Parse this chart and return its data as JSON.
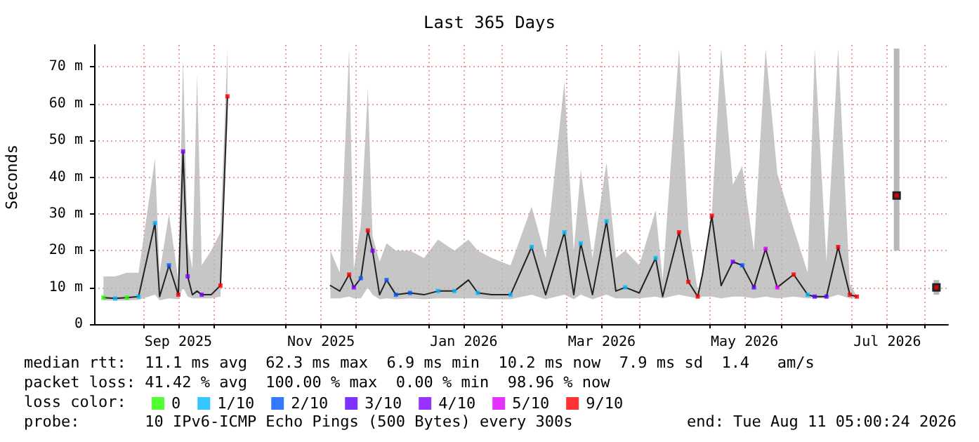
{
  "chart_data": {
    "type": "line",
    "title": "Last 365 Days",
    "ylabel": "Seconds",
    "legend_title": "loss color:",
    "annotations": [
      "median rtt:  11.1 ms avg  62.3 ms max  6.9 ms min  10.2 ms now  7.9 ms sd  1.4   am/s",
      "packet loss: 41.42 % avg  100.00 % max  0.00 % min  98.96 % now",
      "probe:       10 IPv6-ICMP Echo Pings (500 Bytes) every 300s",
      "end: Tue Aug 11 05:00:24 2026"
    ],
    "xlim": [
      "2025-08-11",
      "2026-08-11"
    ],
    "xticks": [
      {
        "value": "2025-09-01",
        "label": null
      },
      {
        "value": "2025-09-16",
        "label": "Sep 2025"
      },
      {
        "value": "2025-10-01",
        "label": null
      },
      {
        "value": "2025-11-01",
        "label": null
      },
      {
        "value": "2025-11-16",
        "label": "Nov 2025"
      },
      {
        "value": "2025-12-01",
        "label": null
      },
      {
        "value": "2026-01-01",
        "label": null
      },
      {
        "value": "2026-01-16",
        "label": "Jan 2026"
      },
      {
        "value": "2026-02-01",
        "label": null
      },
      {
        "value": "2026-03-01",
        "label": null
      },
      {
        "value": "2026-03-16",
        "label": "Mar 2026"
      },
      {
        "value": "2026-04-01",
        "label": null
      },
      {
        "value": "2026-05-01",
        "label": null
      },
      {
        "value": "2026-05-16",
        "label": "May 2026"
      },
      {
        "value": "2026-06-01",
        "label": null
      },
      {
        "value": "2026-07-01",
        "label": null
      },
      {
        "value": "2026-07-16",
        "label": "Jul 2026"
      },
      {
        "value": "2026-08-01",
        "label": null
      }
    ],
    "ylim": [
      0,
      76
    ],
    "yticks": [
      0,
      {
        "value": 10,
        "label": "10 m"
      },
      {
        "value": 20,
        "label": "20 m"
      },
      {
        "value": 30,
        "label": "30 m"
      },
      {
        "value": 40,
        "label": "40 m"
      },
      {
        "value": 50,
        "label": "50 m"
      },
      {
        "value": 60,
        "label": "60 m"
      },
      {
        "value": 70,
        "label": "70 m"
      }
    ],
    "grid": true,
    "legend": "bottom",
    "series": [
      {
        "color": "#222222",
        "marker": "none",
        "x": [
          "2025-08-15",
          "2025-08-20",
          "2025-08-25",
          "2025-08-30",
          "2025-09-06",
          "2025-09-08",
          "2025-09-12",
          "2025-09-16",
          "2025-09-18",
          "2025-09-20",
          "2025-09-22",
          "2025-09-24",
          "2025-09-26",
          "2025-09-30",
          "2025-10-04",
          "2025-10-07",
          "2025-10-10",
          "2025-11-20",
          "2025-11-24",
          "2025-11-28",
          "2025-11-30",
          "2025-12-03",
          "2025-12-06",
          "2025-12-08",
          "2025-12-11",
          "2025-12-14",
          "2025-12-18",
          "2025-12-24",
          "2025-12-30",
          "2026-01-05",
          "2026-01-12",
          "2026-01-18",
          "2026-01-22",
          "2026-01-28",
          "2026-02-05",
          "2026-02-14",
          "2026-02-20",
          "2026-02-28",
          "2026-03-04",
          "2026-03-07",
          "2026-03-12",
          "2026-03-18",
          "2026-03-22",
          "2026-03-26",
          "2026-04-01",
          "2026-04-08",
          "2026-04-11",
          "2026-04-18",
          "2026-04-22",
          "2026-04-26",
          "2026-04-28",
          "2026-05-02",
          "2026-05-06",
          "2026-05-11",
          "2026-05-15",
          "2026-05-20",
          "2026-05-25",
          "2026-05-30",
          "2026-06-06",
          "2026-06-12",
          "2026-06-15",
          "2026-06-20",
          "2026-06-25",
          "2026-06-30",
          "2026-07-03",
          "2026-07-10",
          "2026-07-20",
          "2026-07-28",
          "2026-08-06"
        ],
        "values": [
          7.2,
          7,
          7.2,
          7.5,
          27.5,
          7.5,
          16,
          8,
          47,
          13,
          8,
          9,
          8,
          8,
          10.5,
          62,
          null,
          10.5,
          9,
          13.5,
          10,
          12.5,
          25.5,
          20,
          8,
          12,
          8,
          8.5,
          8,
          9,
          9,
          12,
          8.5,
          8,
          8,
          21,
          8,
          25,
          8,
          22,
          8,
          28,
          9,
          10,
          8.5,
          18,
          7.5,
          25,
          11.5,
          7.5,
          13.5,
          29.5,
          10.5,
          17,
          16,
          10,
          20.5,
          10,
          13.5,
          8,
          7.5,
          7.5,
          21,
          8,
          7.5,
          null,
          35,
          null,
          10
        ],
        "lower": [
          6.5,
          6.4,
          6.5,
          6.6,
          8,
          6.5,
          7,
          6.8,
          10,
          7.5,
          7,
          7,
          7,
          7,
          7.5,
          55,
          null,
          7,
          7,
          7.5,
          7,
          7,
          10,
          8,
          6.8,
          7,
          6.8,
          7,
          6.8,
          7,
          7,
          7,
          7,
          6.8,
          6.8,
          8,
          6.8,
          8,
          6.8,
          8,
          6.8,
          8,
          7,
          7,
          7,
          7.5,
          7,
          8,
          7.5,
          7,
          7.5,
          7.5,
          7,
          7.5,
          7.5,
          7,
          7.5,
          7,
          7.5,
          7,
          7,
          7,
          8,
          7,
          7,
          null,
          20,
          null,
          8
        ],
        "upper": [
          13,
          13,
          14,
          14,
          45,
          14,
          30,
          12,
          72,
          22,
          15,
          68,
          16,
          20,
          25,
          75,
          null,
          20,
          14,
          75,
          15,
          27,
          64,
          24,
          17,
          22,
          20,
          20,
          18,
          23,
          20,
          23,
          20,
          18,
          16,
          32,
          18,
          66,
          20,
          42,
          18,
          44,
          18,
          20,
          16,
          31,
          12,
          75,
          26,
          9,
          14,
          30,
          75,
          38,
          43,
          20,
          75,
          41,
          26,
          14,
          75,
          17,
          75,
          11,
          7.6,
          null,
          75,
          null,
          12
        ]
      },
      {
        "type": "scatter",
        "name": "0",
        "color": "#26ff00",
        "marker": "square",
        "x": [
          "2025-08-15",
          "2025-08-25"
        ],
        "values": [
          7.2,
          7.2
        ]
      },
      {
        "type": "scatter",
        "name": "1/10",
        "color": "#00b8ff",
        "marker": "square",
        "x": [
          "2025-08-20",
          "2025-08-30",
          "2025-09-06",
          "2026-01-05",
          "2026-01-12",
          "2026-01-22",
          "2026-02-05",
          "2026-02-14",
          "2026-02-28",
          "2026-03-07",
          "2026-03-18",
          "2026-03-26",
          "2026-04-08",
          "2026-06-12"
        ],
        "values": [
          7,
          7.5,
          27.5,
          9,
          9,
          8.5,
          8,
          21,
          25,
          22,
          28,
          10,
          18,
          8
        ]
      },
      {
        "type": "scatter",
        "name": "2/10",
        "color": "#0059ff",
        "marker": "square",
        "x": [
          "2025-09-12",
          "2025-12-03",
          "2025-12-14",
          "2025-12-18",
          "2025-12-24",
          "2026-05-15"
        ],
        "values": [
          16,
          12.5,
          12,
          8,
          8.5,
          16
        ]
      },
      {
        "type": "scatter",
        "name": "3/10",
        "color": "#5e00ff",
        "marker": "square",
        "x": [
          "2026-05-20",
          "2026-06-15",
          "2026-06-20"
        ],
        "values": [
          10,
          7.5,
          7.5
        ]
      },
      {
        "type": "scatter",
        "name": "4/10",
        "color": "#7e00ff",
        "marker": "square",
        "x": [
          "2025-09-18",
          "2025-09-20",
          "2025-09-26",
          "2025-11-30",
          "2025-12-08",
          "2026-05-11"
        ],
        "values": [
          47,
          13,
          8,
          10,
          20,
          17
        ]
      },
      {
        "type": "scatter",
        "name": "5/10",
        "color": "#dd00ff",
        "marker": "square",
        "x": [
          "2026-05-25",
          "2026-05-30"
        ],
        "values": [
          20.5,
          10
        ]
      },
      {
        "type": "scatter",
        "name": "9/10",
        "color": "#ff0000",
        "marker": "square",
        "x": [
          "2025-09-16",
          "2025-10-04",
          "2025-10-07",
          "2025-11-28",
          "2025-12-06",
          "2026-04-18",
          "2026-04-22",
          "2026-04-26",
          "2026-05-02",
          "2026-06-06",
          "2026-06-25",
          "2026-06-30",
          "2026-07-03",
          "2026-07-20",
          "2026-08-06"
        ],
        "values": [
          8,
          10.5,
          62,
          13.5,
          25.5,
          25,
          11.5,
          7.5,
          29.5,
          13.5,
          21,
          8,
          7.5,
          35,
          10
        ]
      }
    ]
  }
}
